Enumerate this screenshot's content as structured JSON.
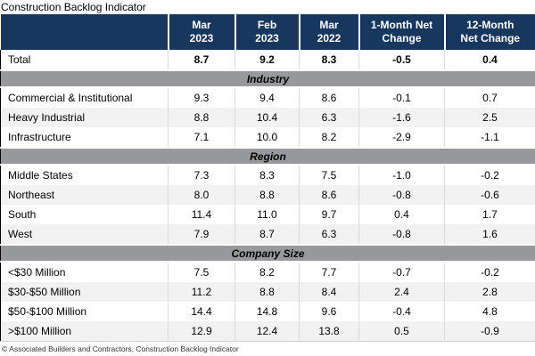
{
  "title": "Construction Backlog Indicator",
  "footer": "© Associated Builders and Contractors, Construction Backlog Indicator",
  "colors": {
    "header_bg": "#17375E",
    "header_text": "#FFFFFF",
    "section_bar_bg": "#97999C",
    "row_stripe": "#F2F2F2",
    "column_divider": "#D9D9D9",
    "table_left_border": "#000000"
  },
  "chart_data": {
    "type": "table",
    "title": "Construction Backlog Indicator",
    "unit": "months of backlog",
    "columns": [
      [
        ""
      ],
      [
        "Mar",
        "2023"
      ],
      [
        "Feb",
        "2023"
      ],
      [
        "Mar",
        "2022"
      ],
      [
        "1-Month Net",
        "Change"
      ],
      [
        "12-Month",
        "Net Change"
      ]
    ],
    "total": {
      "label": "Total",
      "values": [
        "8.7",
        "9.2",
        "8.3",
        "-0.5",
        "0.4"
      ]
    },
    "sections": [
      {
        "label": "Industry",
        "rows": [
          {
            "label": "Commercial & Institutional",
            "values": [
              "9.3",
              "9.4",
              "8.6",
              "-0.1",
              "0.7"
            ]
          },
          {
            "label": "Heavy Industrial",
            "values": [
              "8.8",
              "10.4",
              "6.3",
              "-1.6",
              "2.5"
            ]
          },
          {
            "label": "Infrastructure",
            "values": [
              "7.1",
              "10.0",
              "8.2",
              "-2.9",
              "-1.1"
            ]
          }
        ]
      },
      {
        "label": "Region",
        "rows": [
          {
            "label": "Middle States",
            "values": [
              "7.3",
              "8.3",
              "7.5",
              "-1.0",
              "-0.2"
            ]
          },
          {
            "label": "Northeast",
            "values": [
              "8.0",
              "8.8",
              "8.6",
              "-0.8",
              "-0.6"
            ]
          },
          {
            "label": "South",
            "values": [
              "11.4",
              "11.0",
              "9.7",
              "0.4",
              "1.7"
            ]
          },
          {
            "label": "West",
            "values": [
              "7.9",
              "8.7",
              "6.3",
              "-0.8",
              "1.6"
            ]
          }
        ]
      },
      {
        "label": "Company Size",
        "rows": [
          {
            "label": "<$30 Million",
            "values": [
              "7.5",
              "8.2",
              "7.7",
              "-0.7",
              "-0.2"
            ]
          },
          {
            "label": "$30-$50 Million",
            "values": [
              "11.2",
              "8.8",
              "8.4",
              "2.4",
              "2.8"
            ]
          },
          {
            "label": "$50-$100 Million",
            "values": [
              "14.4",
              "14.8",
              "9.6",
              "-0.4",
              "4.8"
            ]
          },
          {
            "label": ">$100 Million",
            "values": [
              "12.9",
              "12.4",
              "13.8",
              "0.5",
              "-0.9"
            ]
          }
        ]
      }
    ]
  }
}
